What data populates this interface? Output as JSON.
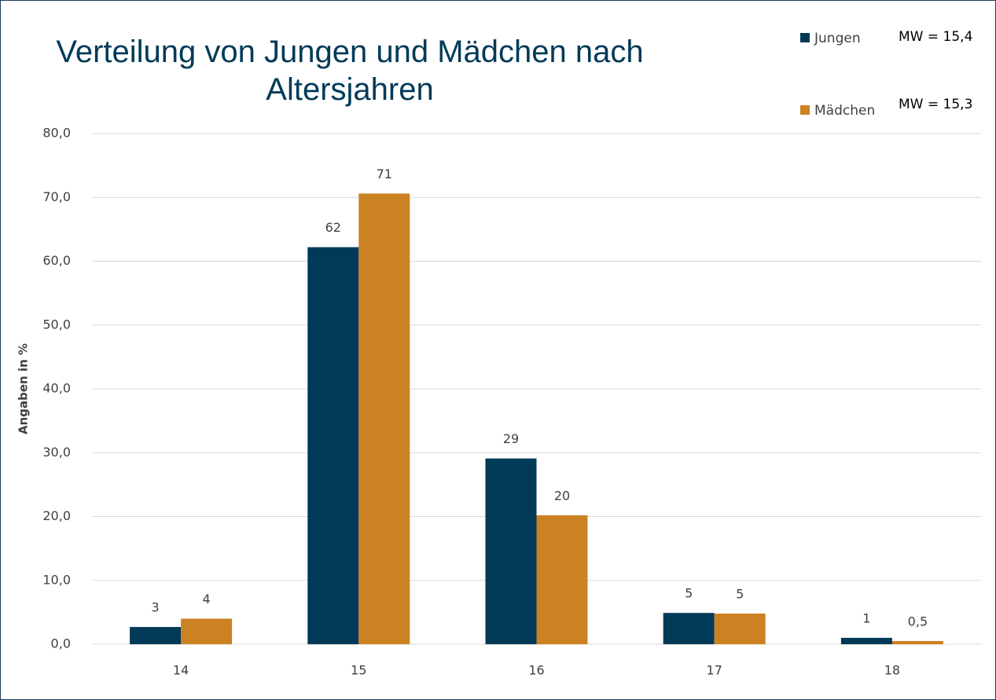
{
  "chart_data": {
    "type": "bar",
    "title": "Verteilung von Jungen und Mädchen nach Altersjahren",
    "y_label": "Angaben in %",
    "annotations": [
      "MW = 15,4",
      "MW = 15,3"
    ],
    "categories": [
      "14",
      "15",
      "16",
      "17",
      "18"
    ],
    "series": [
      {
        "name": "Jungen",
        "color": "#003a57",
        "values": [
          2.7,
          62.2,
          29.1,
          4.9,
          1.0
        ],
        "value_labels": [
          "3",
          "62",
          "29",
          "5",
          "1"
        ]
      },
      {
        "name": "Mädchen",
        "color": "#cc8122",
        "values": [
          4.0,
          70.6,
          20.2,
          4.8,
          0.5
        ],
        "value_labels": [
          "4",
          "71",
          "20",
          "5",
          "0,5"
        ]
      }
    ],
    "ylim": [
      0,
      80
    ],
    "yticks": [
      {
        "value": 0,
        "label": "0,0"
      },
      {
        "value": 10,
        "label": "10,0"
      },
      {
        "value": 20,
        "label": "20,0"
      },
      {
        "value": 30,
        "label": "30,0"
      },
      {
        "value": 40,
        "label": "40,0"
      },
      {
        "value": 50,
        "label": "50,0"
      },
      {
        "value": 60,
        "label": "60,0"
      },
      {
        "value": 70,
        "label": "70,0"
      },
      {
        "value": 80,
        "label": "80,0"
      }
    ],
    "grid": true
  }
}
